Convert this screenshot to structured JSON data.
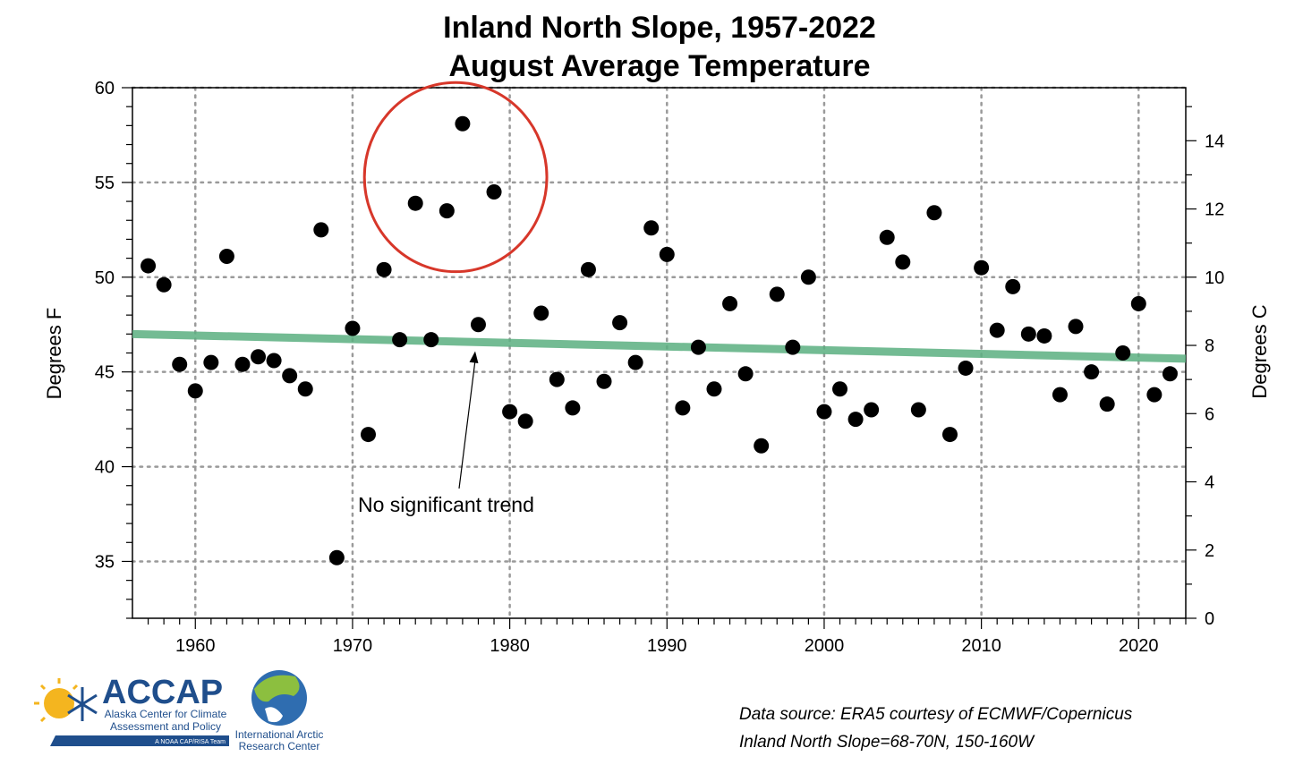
{
  "chart_data": {
    "type": "scatter",
    "title": "Inland North Slope, 1957-2022",
    "subtitle": "August Average Temperature",
    "ylabel_left": "Degrees F",
    "ylabel_right": "Degrees C",
    "xlim": [
      1956,
      2023
    ],
    "ylim": [
      32,
      60
    ],
    "x_ticks": [
      "1960",
      "1970",
      "1980",
      "1990",
      "2000",
      "2010",
      "2020"
    ],
    "y_ticks_left": [
      "35",
      "40",
      "45",
      "50",
      "55",
      "60"
    ],
    "y_ticks_right": [
      "0",
      "2",
      "4",
      "6",
      "8",
      "10",
      "12",
      "14"
    ],
    "grid": true,
    "x": [
      1957,
      1958,
      1959,
      1960,
      1961,
      1962,
      1963,
      1964,
      1965,
      1966,
      1967,
      1968,
      1969,
      1970,
      1971,
      1972,
      1973,
      1974,
      1975,
      1976,
      1977,
      1978,
      1979,
      1980,
      1981,
      1982,
      1983,
      1984,
      1985,
      1986,
      1987,
      1988,
      1989,
      1990,
      1991,
      1992,
      1993,
      1994,
      1995,
      1996,
      1997,
      1998,
      1999,
      2000,
      2001,
      2002,
      2003,
      2004,
      2005,
      2006,
      2007,
      2008,
      2009,
      2010,
      2011,
      2012,
      2013,
      2014,
      2015,
      2016,
      2017,
      2018,
      2019,
      2020,
      2021,
      2022
    ],
    "y": [
      50.6,
      49.6,
      45.4,
      44.0,
      45.5,
      51.1,
      45.4,
      45.8,
      45.6,
      44.8,
      44.1,
      52.5,
      35.2,
      47.3,
      41.7,
      50.4,
      46.7,
      53.9,
      46.7,
      53.5,
      58.1,
      47.5,
      54.5,
      42.9,
      42.4,
      48.1,
      44.6,
      43.1,
      50.4,
      44.5,
      47.6,
      45.5,
      52.6,
      51.2,
      43.1,
      46.3,
      44.1,
      48.6,
      44.9,
      41.1,
      49.1,
      46.3,
      50.0,
      42.9,
      44.1,
      42.5,
      43.0,
      52.1,
      50.8,
      43.0,
      53.4,
      41.7,
      45.2,
      50.5,
      47.2,
      49.5,
      47.0,
      46.9,
      43.8,
      47.4,
      45.0,
      43.3,
      46.0,
      48.6,
      43.8,
      44.9
    ],
    "trend": {
      "x": [
        1956,
        2023
      ],
      "y": [
        47.0,
        45.7
      ],
      "color": "#5aaf80"
    },
    "highlight": {
      "years": [
        1974,
        1976,
        1977,
        1979
      ],
      "color": "#d7372a"
    },
    "annotation": "No significant trend"
  },
  "source": {
    "line1": "Data source: ERA5 courtesy of ECMWF/Copernicus",
    "line2": "Inland North Slope=68-70N, 150-160W"
  },
  "logos": {
    "accap_name": "ACCAP",
    "accap_line1": "Alaska Center for Climate",
    "accap_line2": "Assessment and Policy",
    "accap_tag": "A NOAA CAP/RISA Team",
    "iarc_line1": "International Arctic",
    "iarc_line2": "Research Center",
    "accap_color": "#1f4e8c"
  }
}
